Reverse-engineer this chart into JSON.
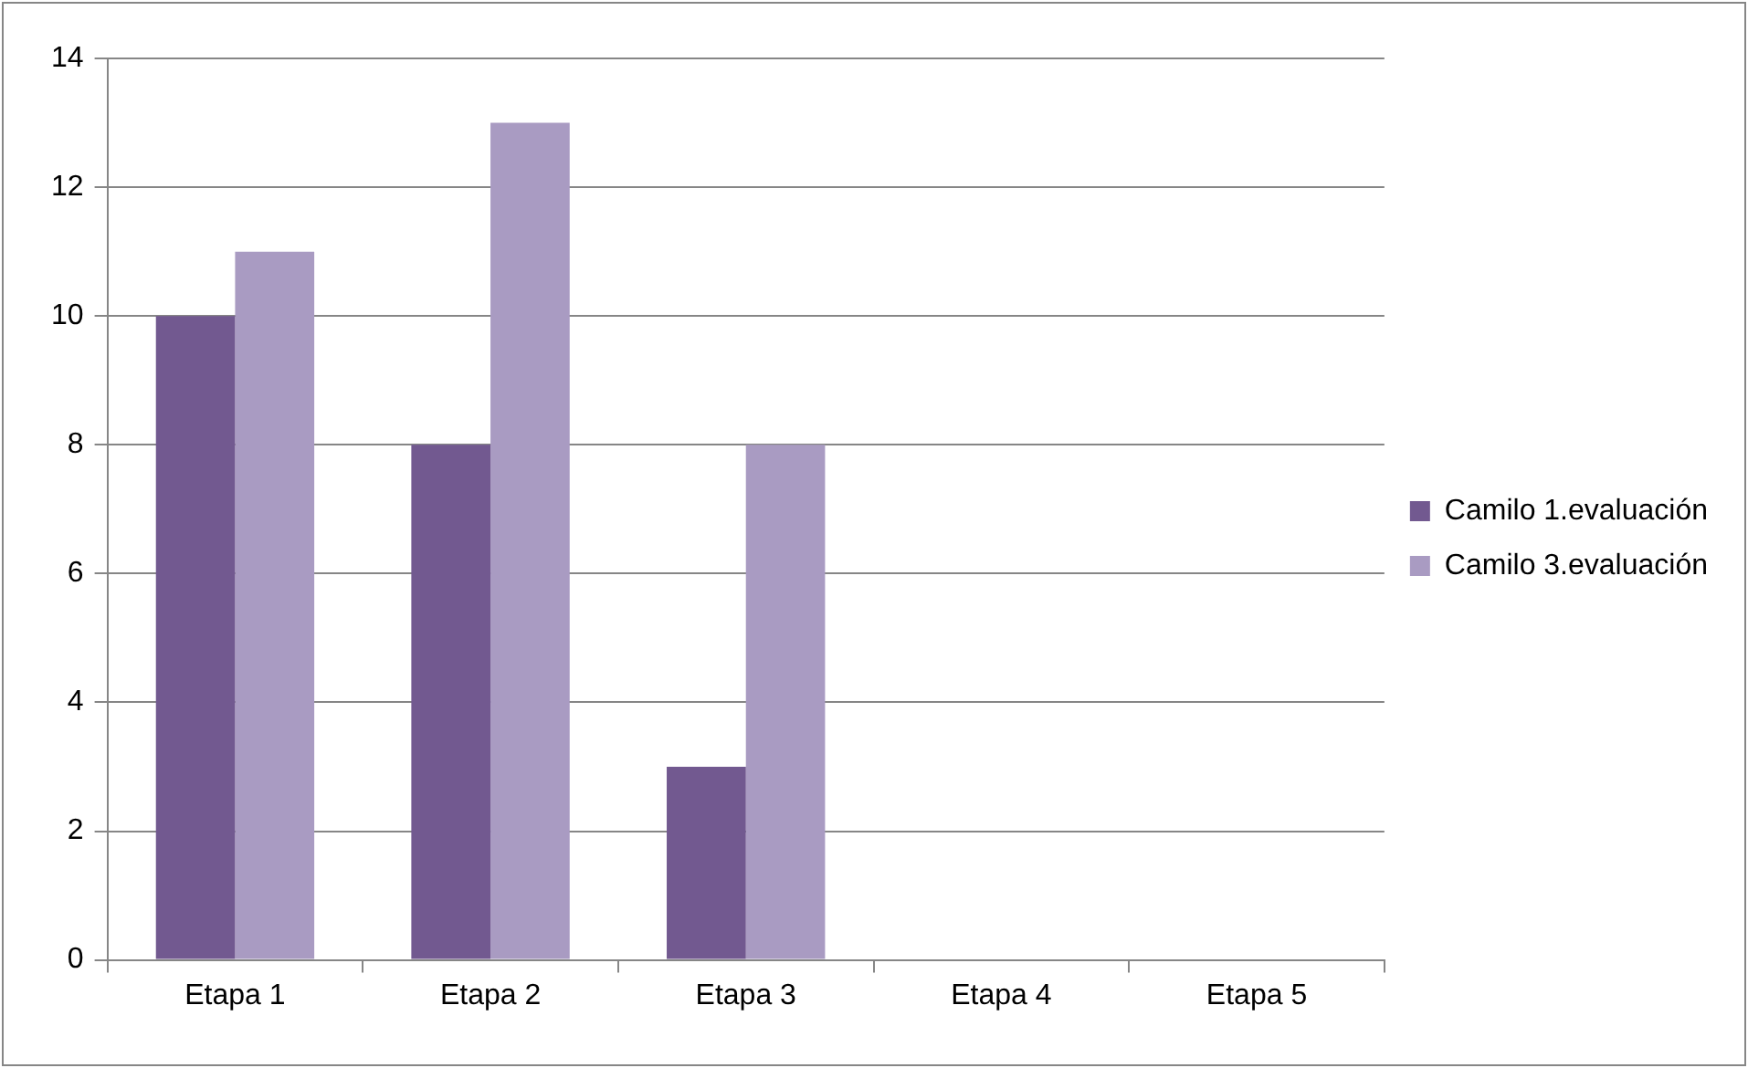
{
  "chart_data": {
    "type": "bar",
    "categories": [
      "Etapa 1",
      "Etapa 2",
      "Etapa 3",
      "Etapa 4",
      "Etapa 5"
    ],
    "series": [
      {
        "name": "Camilo 1.evaluación",
        "color": "#725990",
        "values": [
          10,
          8,
          3,
          null,
          null
        ]
      },
      {
        "name": "Camilo 3.evaluación",
        "color": "#a99bc2",
        "values": [
          11,
          13,
          8,
          null,
          null
        ]
      }
    ],
    "ylim": [
      0,
      14
    ],
    "yticks": [
      0,
      2,
      4,
      6,
      8,
      10,
      12,
      14
    ],
    "grid": "y",
    "legend": "right"
  }
}
